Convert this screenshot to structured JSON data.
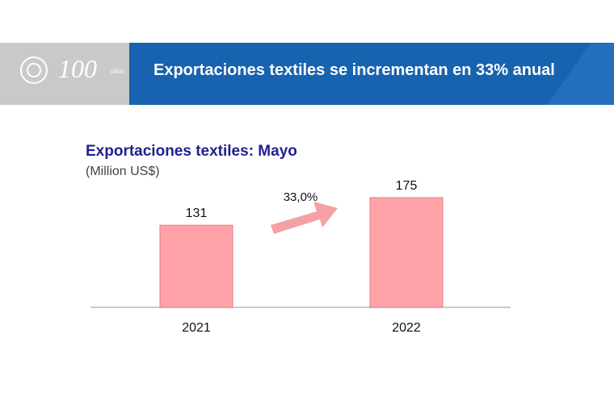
{
  "header": {
    "logo_number": "100",
    "logo_sub": "años",
    "title": "Exportaciones textiles se incrementan en 33% anual"
  },
  "colors": {
    "header_blue": "#1763b0",
    "logo_gray": "#c9c9c9",
    "bar_fill": "#ffa3a8",
    "arrow_fill": "#f4a1a5",
    "title_color": "#1f1f8f"
  },
  "chart_data": {
    "type": "bar",
    "title": "Exportaciones textiles: Mayo",
    "subtitle": "(Million US$)",
    "categories": [
      "2021",
      "2022"
    ],
    "values": [
      131,
      175
    ],
    "value_labels": [
      "131",
      "175"
    ],
    "annotation": "33,0%",
    "ylim": [
      0,
      220
    ],
    "grid": false
  }
}
